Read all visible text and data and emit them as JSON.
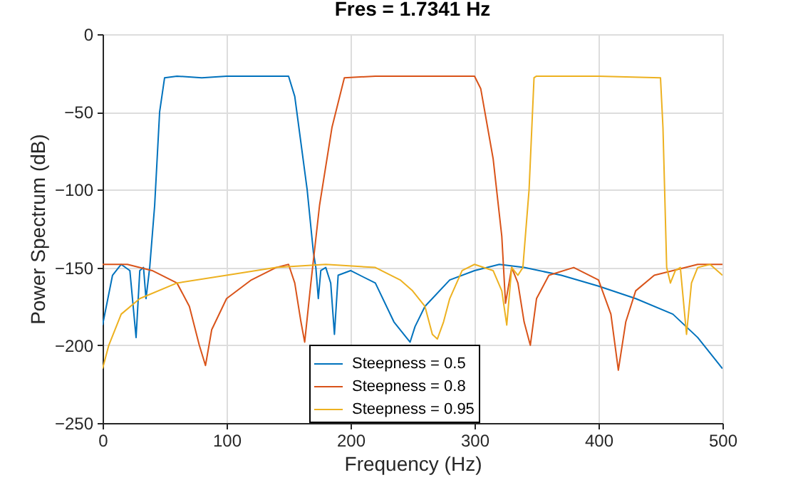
{
  "chart_data": {
    "type": "line",
    "title": "Fres = 1.7341 Hz",
    "xlabel": "Frequency (Hz)",
    "ylabel": "Power Spectrum (dB)",
    "xlim": [
      0,
      500
    ],
    "xticks": [
      0,
      100,
      200,
      300,
      400,
      500
    ],
    "ylim": [
      -250,
      0
    ],
    "yticks": [
      -250,
      -200,
      -150,
      -100,
      -50,
      0
    ],
    "grid": true,
    "legend": "bottom",
    "line_style": "solid",
    "marker": "none",
    "series": [
      {
        "name": "Steepness = 0.5",
        "color": "#0072bd",
        "x": [
          0,
          8,
          15,
          22,
          27,
          30,
          33,
          35,
          38,
          42,
          46,
          50,
          60,
          80,
          100,
          120,
          140,
          150,
          155,
          160,
          165,
          170,
          172,
          174,
          176,
          180,
          184,
          187,
          190,
          200,
          220,
          235,
          245,
          248,
          252,
          260,
          280,
          300,
          320,
          340,
          370,
          400,
          430,
          460,
          480,
          500
        ],
        "values": [
          -187,
          -155,
          -148,
          -152,
          -195,
          -152,
          -150,
          -170,
          -150,
          -110,
          -50,
          -28,
          -27,
          -28,
          -27,
          -27,
          -27,
          -27,
          -40,
          -70,
          -100,
          -140,
          -150,
          -170,
          -152,
          -150,
          -160,
          -193,
          -155,
          -152,
          -160,
          -185,
          -195,
          -198,
          -188,
          -175,
          -158,
          -152,
          -148,
          -150,
          -155,
          -162,
          -170,
          -180,
          -195,
          -215
        ]
      },
      {
        "name": "Steepness = 0.8",
        "color": "#d95319",
        "x": [
          0,
          20,
          40,
          60,
          70,
          78,
          83,
          88,
          100,
          120,
          140,
          150,
          155,
          160,
          163,
          168,
          175,
          185,
          195,
          220,
          260,
          300,
          305,
          315,
          322,
          325,
          330,
          335,
          340,
          345,
          350,
          360,
          380,
          400,
          410,
          416,
          422,
          430,
          445,
          460,
          480,
          500
        ],
        "values": [
          -148,
          -148,
          -152,
          -160,
          -175,
          -200,
          -213,
          -190,
          -170,
          -158,
          -150,
          -148,
          -160,
          -185,
          -198,
          -160,
          -110,
          -60,
          -28,
          -27,
          -27,
          -27,
          -35,
          -80,
          -130,
          -173,
          -150,
          -160,
          -185,
          -200,
          -170,
          -155,
          -150,
          -158,
          -180,
          -216,
          -185,
          -165,
          -155,
          -152,
          -148,
          -148
        ]
      },
      {
        "name": "Steepness = 0.95",
        "color": "#edb120",
        "x": [
          0,
          5,
          15,
          30,
          60,
          100,
          140,
          180,
          220,
          240,
          250,
          260,
          266,
          270,
          275,
          280,
          290,
          300,
          315,
          322,
          326,
          330,
          335,
          339,
          344,
          348,
          350,
          400,
          450,
          452,
          455,
          458,
          462,
          466,
          471,
          475,
          480,
          490,
          500
        ],
        "values": [
          -215,
          -200,
          -180,
          -170,
          -160,
          -155,
          -150,
          -148,
          -150,
          -158,
          -165,
          -175,
          -193,
          -196,
          -185,
          -170,
          -152,
          -148,
          -152,
          -165,
          -187,
          -150,
          -155,
          -150,
          -100,
          -28,
          -27,
          -27,
          -28,
          -60,
          -150,
          -160,
          -152,
          -150,
          -193,
          -160,
          -150,
          -148,
          -155
        ]
      }
    ]
  }
}
